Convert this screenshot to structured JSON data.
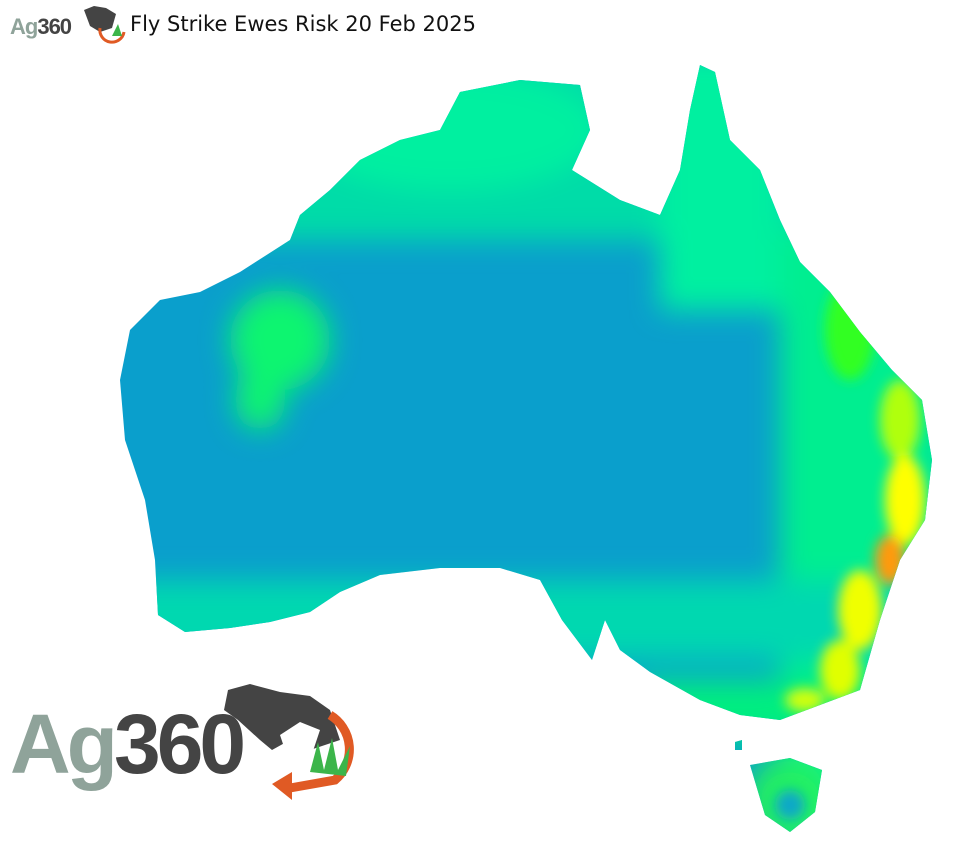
{
  "header": {
    "title": "Fly Strike Ewes Risk 20 Feb 2025"
  },
  "logo": {
    "ag": "Ag",
    "num": "360",
    "brand_gray": "#8fa39a",
    "brand_dark": "#444444",
    "brand_orange": "#e05a24",
    "brand_green": "#3cb54a"
  },
  "map": {
    "region": "Australia",
    "colors": {
      "low": "#0a9fcc",
      "medium_low": "#00e8a0",
      "medium": "#19f55a",
      "high": "#ffff00",
      "very_high": "#ff8c00"
    }
  }
}
